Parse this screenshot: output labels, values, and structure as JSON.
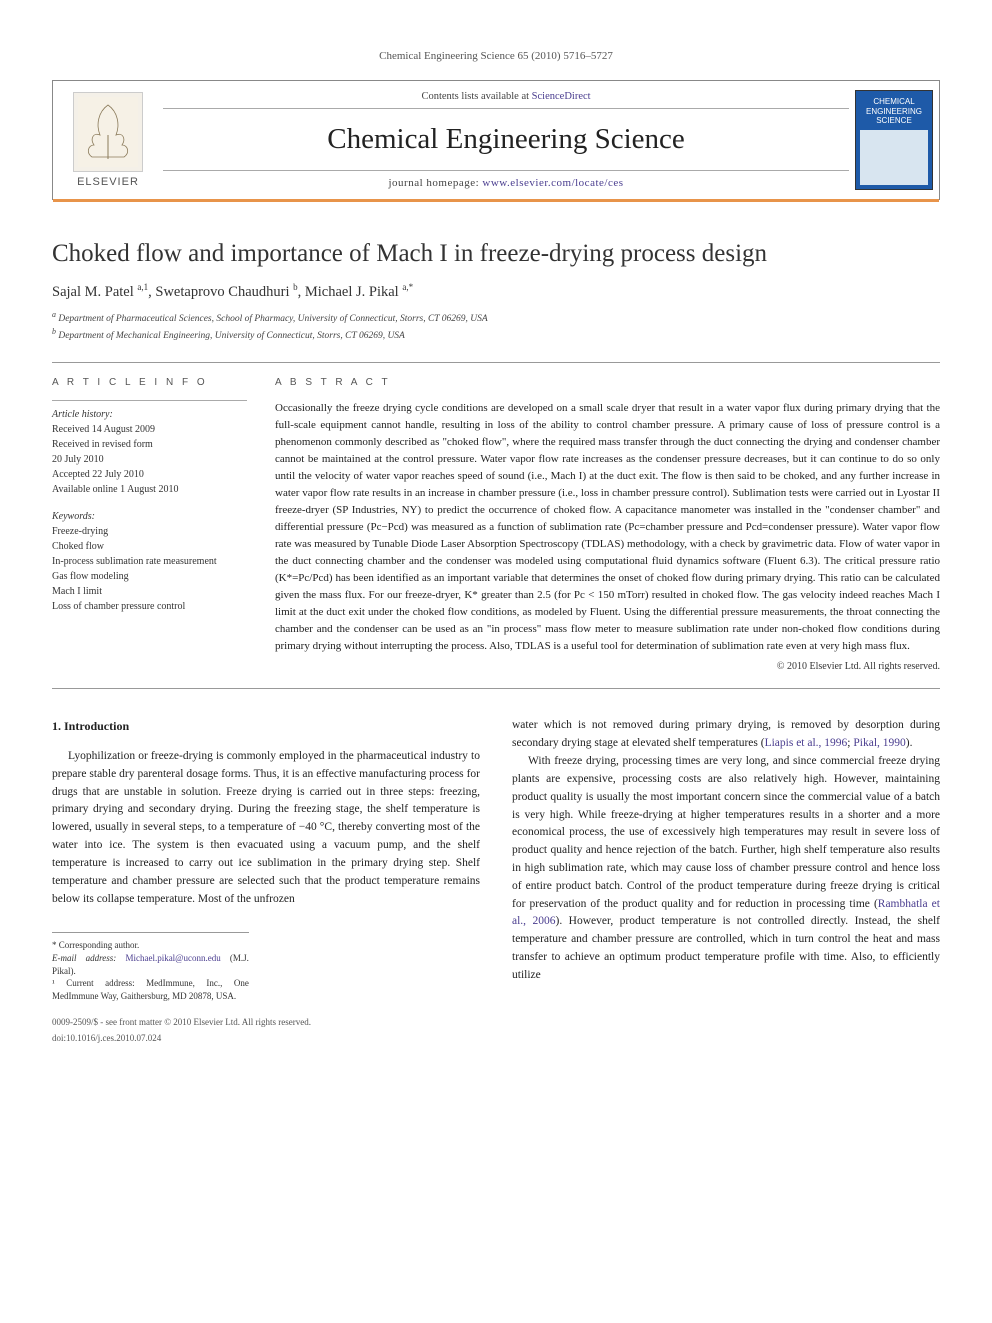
{
  "journal_header": {
    "citation": "Chemical Engineering Science 65 (2010) 5716–5727",
    "contents_prefix": "Contents lists available at ",
    "contents_link": "ScienceDirect",
    "journal_name": "Chemical Engineering Science",
    "homepage_prefix": "journal homepage: ",
    "homepage_link": "www.elsevier.com/locate/ces",
    "elsevier_label": "ELSEVIER",
    "cover_title": "CHEMICAL ENGINEERING SCIENCE"
  },
  "article": {
    "title": "Choked flow and importance of Mach I in freeze-drying process design",
    "authors_html": "Sajal M. Patel <sup>a,1</sup>, Swetaprovo Chaudhuri <sup>b</sup>, Michael J. Pikal <sup>a,*</sup>",
    "affiliations": [
      "a Department of Pharmaceutical Sciences, School of Pharmacy, University of Connecticut, Storrs, CT 06269, USA",
      "b Department of Mechanical Engineering, University of Connecticut, Storrs, CT 06269, USA"
    ]
  },
  "article_info": {
    "heading": "A R T I C L E   I N F O",
    "history_label": "Article history:",
    "history": [
      "Received 14 August 2009",
      "Received in revised form",
      "20 July 2010",
      "Accepted 22 July 2010",
      "Available online 1 August 2010"
    ],
    "keywords_label": "Keywords:",
    "keywords": [
      "Freeze-drying",
      "Choked flow",
      "In-process sublimation rate measurement",
      "Gas flow modeling",
      "Mach I limit",
      "Loss of chamber pressure control"
    ]
  },
  "abstract": {
    "heading": "A B S T R A C T",
    "text": "Occasionally the freeze drying cycle conditions are developed on a small scale dryer that result in a water vapor flux during primary drying that the full-scale equipment cannot handle, resulting in loss of the ability to control chamber pressure. A primary cause of loss of pressure control is a phenomenon commonly described as \"choked flow\", where the required mass transfer through the duct connecting the drying and condenser chamber cannot be maintained at the control pressure. Water vapor flow rate increases as the condenser pressure decreases, but it can continue to do so only until the velocity of water vapor reaches speed of sound (i.e., Mach I) at the duct exit. The flow is then said to be choked, and any further increase in water vapor flow rate results in an increase in chamber pressure (i.e., loss in chamber pressure control). Sublimation tests were carried out in Lyostar II freeze-dryer (SP Industries, NY) to predict the occurrence of choked flow. A capacitance manometer was installed in the \"condenser chamber\" and differential pressure (Pc−Pcd) was measured as a function of sublimation rate (Pc=chamber pressure and Pcd=condenser pressure). Water vapor flow rate was measured by Tunable Diode Laser Absorption Spectroscopy (TDLAS) methodology, with a check by gravimetric data. Flow of water vapor in the duct connecting chamber and the condenser was modeled using computational fluid dynamics software (Fluent 6.3). The critical pressure ratio (K*=Pc/Pcd) has been identified as an important variable that determines the onset of choked flow during primary drying. This ratio can be calculated given the mass flux. For our freeze-dryer, K* greater than 2.5 (for Pc < 150 mTorr) resulted in choked flow. The gas velocity indeed reaches Mach I limit at the duct exit under the choked flow conditions, as modeled by Fluent. Using the differential pressure measurements, the throat connecting the chamber and the condenser can be used as an \"in process\" mass flow meter to measure sublimation rate under non-choked flow conditions during primary drying without interrupting the process. Also, TDLAS is a useful tool for determination of sublimation rate even at very high mass flux.",
    "copyright": "© 2010 Elsevier Ltd. All rights reserved."
  },
  "body": {
    "intro_heading": "1. Introduction",
    "col1_p1": "Lyophilization or freeze-drying is commonly employed in the pharmaceutical industry to prepare stable dry parenteral dosage forms. Thus, it is an effective manufacturing process for drugs that are unstable in solution. Freeze drying is carried out in three steps: freezing, primary drying and secondary drying. During the freezing stage, the shelf temperature is lowered, usually in several steps, to a temperature of −40 °C, thereby converting most of the water into ice. The system is then evacuated using a vacuum pump, and the shelf temperature is increased to carry out ice sublimation in the primary drying step. Shelf temperature and chamber pressure are selected such that the product temperature remains below its collapse temperature. Most of the unfrozen",
    "col2_p1_prefix": "water which is not removed during primary drying, is removed by desorption during secondary drying stage at elevated shelf temperatures (",
    "col2_p1_ref1": "Liapis et al., 1996",
    "col2_p1_mid": "; ",
    "col2_p1_ref2": "Pikal, 1990",
    "col2_p1_suffix": ").",
    "col2_p2_prefix": "With freeze drying, processing times are very long, and since commercial freeze drying plants are expensive, processing costs are also relatively high. However, maintaining product quality is usually the most important concern since the commercial value of a batch is very high. While freeze-drying at higher temperatures results in a shorter and a more economical process, the use of excessively high temperatures may result in severe loss of product quality and hence rejection of the batch. Further, high shelf temperature also results in high sublimation rate, which may cause loss of chamber pressure control and hence loss of entire product batch. Control of the product temperature during freeze drying is critical for preservation of the product quality and for reduction in processing time (",
    "col2_p2_ref": "Rambhatla et al., 2006",
    "col2_p2_suffix": "). However, product temperature is not controlled directly. Instead, the shelf temperature and chamber pressure are controlled, which in turn control the heat and mass transfer to achieve an optimum product temperature profile with time. Also, to efficiently utilize"
  },
  "footnotes": {
    "corresponding": "* Corresponding author.",
    "email_label": "E-mail address: ",
    "email": "Michael.pikal@uconn.edu",
    "email_suffix": " (M.J. Pikal).",
    "current_addr": "¹ Current address: MedImmune, Inc., One MedImmune Way, Gaithersburg, MD 20878, USA."
  },
  "footer": {
    "issn": "0009-2509/$ - see front matter © 2010 Elsevier Ltd. All rights reserved.",
    "doi": "doi:10.1016/j.ces.2010.07.024"
  }
}
